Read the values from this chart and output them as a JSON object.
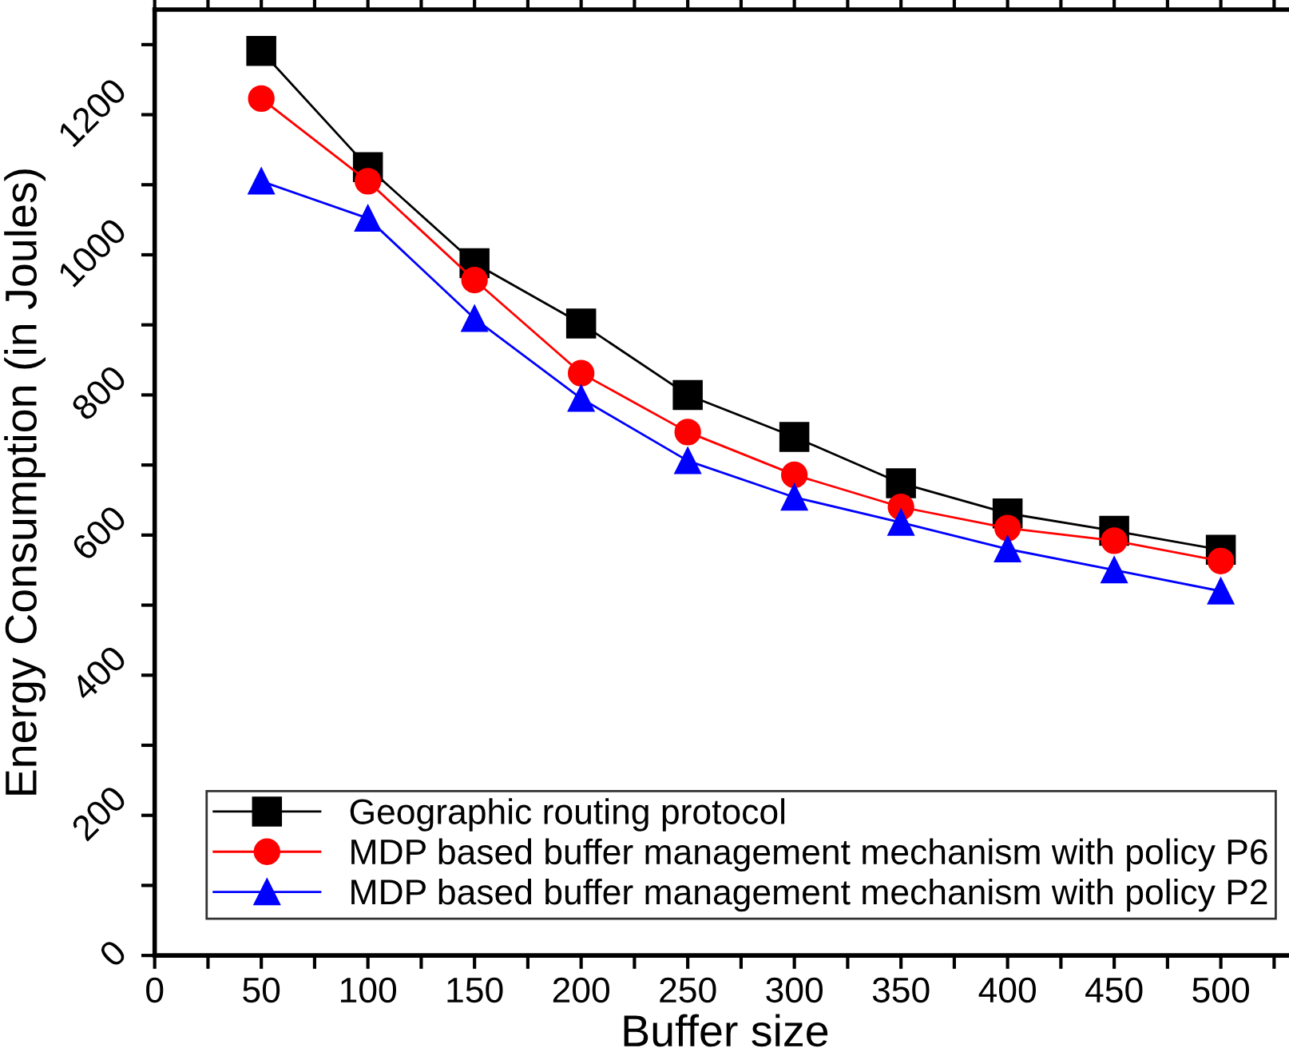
{
  "chart_data": {
    "type": "line",
    "xlabel": "Buffer size",
    "ylabel": "Energy Consumption (in Joules)",
    "x": [
      50,
      100,
      150,
      200,
      250,
      300,
      350,
      400,
      450,
      500
    ],
    "series": [
      {
        "name": "Geographic routing protocol",
        "color": "#000000",
        "marker": "square",
        "values": [
          1291,
          1125,
          988,
          902,
          800,
          740,
          674,
          631,
          606,
          579
        ]
      },
      {
        "name": "MDP based buffer management mechanism with policy P6",
        "color": "#ff0000",
        "marker": "circle",
        "values": [
          1223,
          1105,
          964,
          831,
          747,
          686,
          640,
          610,
          592,
          563
        ]
      },
      {
        "name": "MDP based buffer management mechanism with policy P2",
        "color": "#0000ff",
        "marker": "triangle",
        "values": [
          1105,
          1052,
          909,
          795,
          706,
          654,
          618,
          580,
          550,
          520
        ]
      }
    ],
    "xlim": [
      0,
      535
    ],
    "ylim": [
      0,
      1350
    ],
    "xticks": [
      0,
      {
        "value": 25,
        "label": null
      },
      50,
      {
        "value": 75,
        "label": null
      },
      100,
      {
        "value": 125,
        "label": null
      },
      150,
      {
        "value": 175,
        "label": null
      },
      200,
      {
        "value": 225,
        "label": null
      },
      250,
      {
        "value": 275,
        "label": null
      },
      300,
      {
        "value": 325,
        "label": null
      },
      350,
      {
        "value": 375,
        "label": null
      },
      400,
      {
        "value": 425,
        "label": null
      },
      450,
      {
        "value": 475,
        "label": null
      },
      500,
      {
        "value": 525,
        "label": null
      }
    ],
    "yticks": [
      0,
      {
        "value": 100,
        "label": null
      },
      200,
      {
        "value": 300,
        "label": null
      },
      400,
      {
        "value": 500,
        "label": null
      },
      600,
      {
        "value": 700,
        "label": null
      },
      800,
      {
        "value": 900,
        "label": null
      },
      1000,
      {
        "value": 1100,
        "label": null
      },
      1200,
      {
        "value": 1300,
        "label": null
      }
    ],
    "legend": "bottom",
    "grid": false,
    "line_style": "solid"
  }
}
